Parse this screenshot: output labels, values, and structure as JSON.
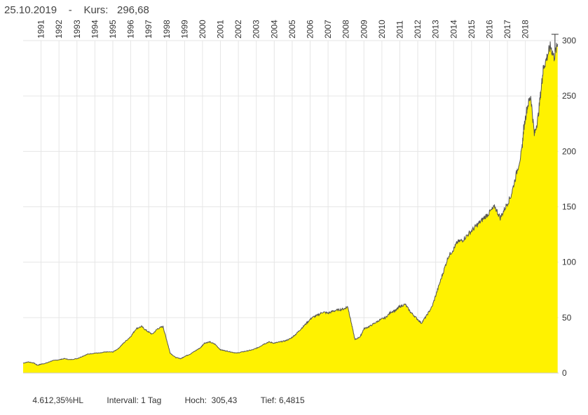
{
  "header": {
    "date": "25.10.2019",
    "separator": "-",
    "price_label": "Kurs:",
    "price_value": "296,68"
  },
  "footer": {
    "change": "4.612,35%HL",
    "interval_label": "Intervall:",
    "interval_value": "1 Tag",
    "high_label": "Hoch:",
    "high_value": "305,43",
    "low_label": "Tief:",
    "low_value": "6,4815"
  },
  "colors": {
    "fill": "#fff200",
    "line": "#555555",
    "grid": "#e6e6e6"
  },
  "chart_data": {
    "type": "area",
    "title": "",
    "xlabel": "",
    "ylabel": "",
    "ylim": [
      0,
      300
    ],
    "yticks": [
      0,
      50,
      100,
      150,
      200,
      250,
      300
    ],
    "x_tick_labels": [
      "1991",
      "1992",
      "1993",
      "1994",
      "1995",
      "1996",
      "1997",
      "1998",
      "1999",
      "2000",
      "2001",
      "2002",
      "2003",
      "2004",
      "2005",
      "2006",
      "2007",
      "2008",
      "2009",
      "2010",
      "2011",
      "2012",
      "2013",
      "2014",
      "2015",
      "2016",
      "2017",
      "2018"
    ],
    "xlim": [
      1990.0,
      2019.85
    ],
    "grid": true,
    "series": [
      {
        "x": [
          1990.0,
          1990.3,
          1990.6,
          1990.8,
          1991.0,
          1991.3,
          1991.6,
          1992.0,
          1992.3,
          1992.6,
          1993.0,
          1993.3,
          1993.6,
          1994.0,
          1994.3,
          1994.6,
          1995.0,
          1995.3,
          1995.6,
          1996.0,
          1996.3,
          1996.6,
          1996.9,
          1997.2,
          1997.5,
          1997.8,
          1998.0,
          1998.2,
          1998.5,
          1998.8,
          1999.0,
          1999.3,
          1999.6,
          1999.9,
          2000.1,
          2000.4,
          2000.7,
          2001.0,
          2001.3,
          2001.6,
          2001.9,
          2002.2,
          2002.5,
          2002.8,
          2003.1,
          2003.4,
          2003.7,
          2004.0,
          2004.3,
          2004.6,
          2004.9,
          2005.2,
          2005.5,
          2005.8,
          2006.1,
          2006.4,
          2006.7,
          2007.0,
          2007.3,
          2007.6,
          2007.9,
          2008.1,
          2008.3,
          2008.5,
          2008.8,
          2009.0,
          2009.3,
          2009.6,
          2009.9,
          2010.2,
          2010.5,
          2010.8,
          2011.0,
          2011.3,
          2011.6,
          2011.9,
          2012.2,
          2012.5,
          2012.8,
          2013.1,
          2013.4,
          2013.7,
          2014.0,
          2014.2,
          2014.5,
          2014.8,
          2015.1,
          2015.4,
          2015.7,
          2016.0,
          2016.3,
          2016.6,
          2016.9,
          2017.2,
          2017.5,
          2017.8,
          2017.9,
          2018.1,
          2018.3,
          2018.5,
          2018.7,
          2018.9,
          2019.0,
          2019.2,
          2019.4,
          2019.6,
          2019.8
        ],
        "y": [
          9,
          10,
          9,
          7,
          8,
          9,
          11,
          12,
          13,
          12,
          13,
          15,
          17,
          18,
          18,
          19,
          19,
          22,
          27,
          33,
          40,
          42,
          38,
          35,
          40,
          42,
          30,
          18,
          14,
          13,
          15,
          17,
          20,
          23,
          27,
          28,
          26,
          21,
          20,
          19,
          18,
          19,
          20,
          21,
          23,
          26,
          28,
          27,
          28,
          29,
          31,
          35,
          40,
          45,
          50,
          52,
          55,
          54,
          56,
          57,
          58,
          60,
          45,
          30,
          33,
          40,
          42,
          45,
          48,
          50,
          55,
          57,
          60,
          62,
          55,
          50,
          45,
          52,
          60,
          75,
          90,
          105,
          112,
          118,
          120,
          125,
          130,
          135,
          140,
          145,
          150,
          140,
          150,
          160,
          180,
          200,
          220,
          240,
          250,
          215,
          230,
          260,
          275,
          285,
          295,
          285,
          297
        ]
      }
    ]
  }
}
